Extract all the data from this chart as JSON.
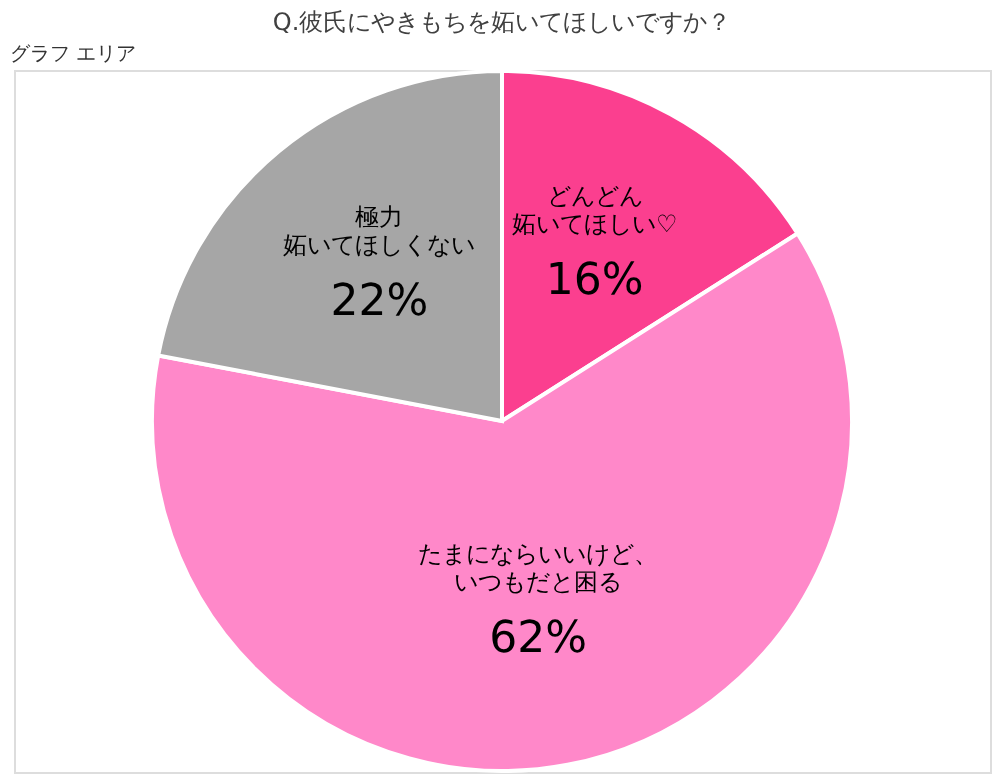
{
  "chart_data": {
    "type": "pie",
    "title": "Q.彼氏にやきもちを妬いてほしいですか？",
    "categories": [
      "どんどん妬いてほしい♡",
      "たまにならいいけど、いつもだと困る",
      "極力妬いてほしくない"
    ],
    "values": [
      16,
      62,
      22
    ],
    "colors": [
      "#fb3f8f",
      "#ff88c9",
      "#a6a6a6"
    ],
    "value_labels": [
      "16%",
      "62%",
      "22%"
    ],
    "annotations": [
      "グラフ エリア"
    ],
    "legend": false
  }
}
